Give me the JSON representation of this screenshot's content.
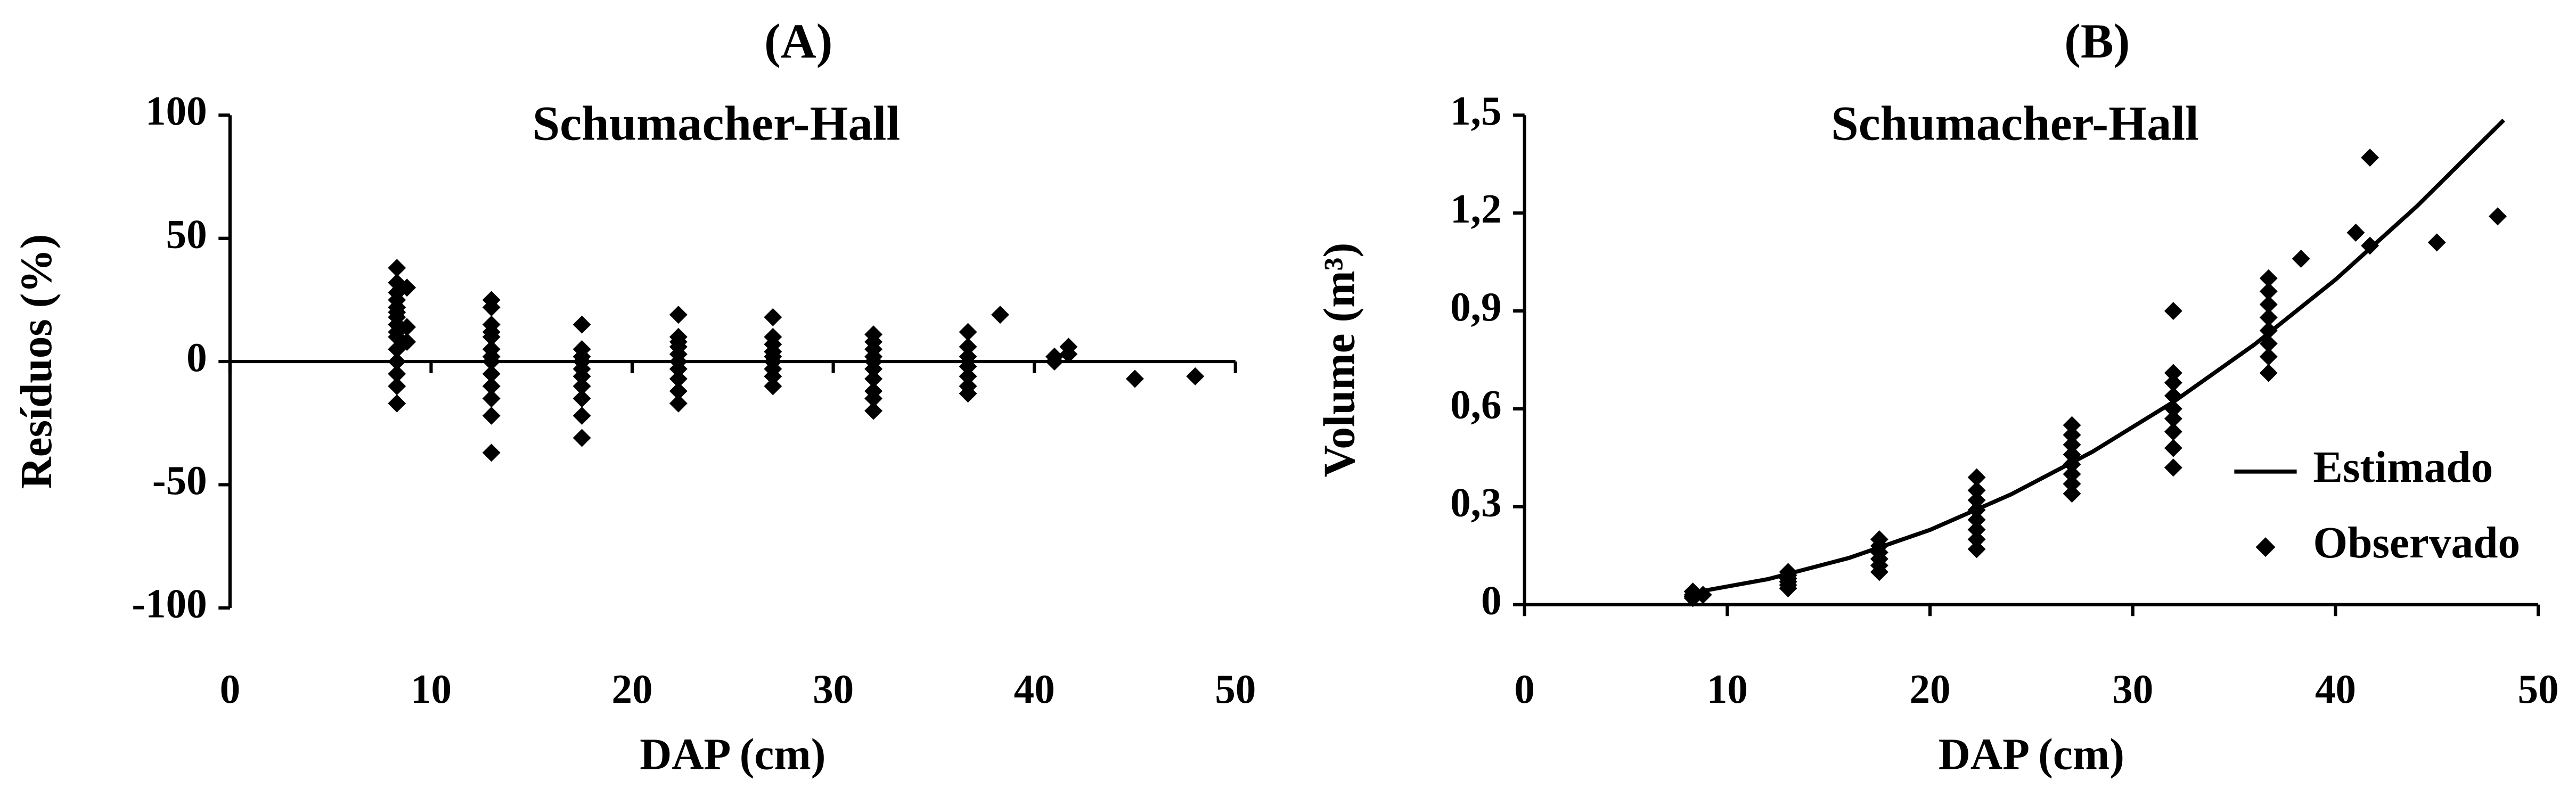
{
  "chart_data": [
    {
      "type": "scatter",
      "title": "(A)",
      "subtitle": "Schumacher-Hall",
      "x_label": "DAP (cm)",
      "y_label": "Resíduos (%)",
      "xlim": [
        0,
        50
      ],
      "xticks": [
        0,
        10,
        20,
        30,
        40,
        50
      ],
      "ylim": [
        -100,
        100
      ],
      "yticks": [
        -100,
        -50,
        0,
        50,
        100
      ],
      "color": "#000000",
      "x": [
        8.3,
        8.3,
        8.3,
        8.3,
        8.3,
        8.3,
        8.3,
        8.3,
        8.3,
        8.3,
        8.3,
        8.3,
        8.3,
        8.3,
        8.3,
        8.8,
        8.8,
        8.8,
        13,
        13,
        13,
        13,
        13,
        13,
        13,
        13,
        13,
        13,
        13,
        13,
        13,
        17.5,
        17.5,
        17.5,
        17.5,
        17.5,
        17.5,
        17.5,
        17.5,
        17.5,
        17.5,
        22.3,
        22.3,
        22.3,
        22.3,
        22.3,
        22.3,
        22.3,
        22.3,
        22.3,
        22.3,
        27,
        27,
        27,
        27,
        27,
        27,
        27,
        27,
        27,
        32,
        32,
        32,
        32,
        32,
        32,
        32,
        32,
        32,
        32,
        36.7,
        36.7,
        36.7,
        36.7,
        36.7,
        36.7,
        36.7,
        38.3,
        41,
        41,
        41.7,
        41.7,
        45,
        48
      ],
      "values": [
        38,
        32,
        25,
        22,
        20,
        15,
        10,
        5,
        0,
        -5,
        -10,
        -17,
        28,
        18,
        12,
        30,
        14,
        8,
        25,
        22,
        15,
        10,
        5,
        2,
        0,
        -5,
        -10,
        -15,
        -22,
        -37,
        12,
        15,
        5,
        2,
        0,
        -3,
        -6,
        -10,
        -15,
        -22,
        -31,
        19,
        10,
        6,
        3,
        0,
        -3,
        -7,
        -12,
        -17,
        8,
        18,
        10,
        7,
        4,
        2,
        0,
        -3,
        -6,
        -10,
        11,
        8,
        5,
        2,
        0,
        -3,
        -7,
        -12,
        -15,
        -20,
        12,
        6,
        2,
        -2,
        -6,
        -10,
        -13,
        19,
        0,
        2,
        6,
        3,
        -7,
        -6
      ]
    },
    {
      "type": "scatter_line",
      "title": "(B)",
      "subtitle": "Schumacher-Hall",
      "x_label": "DAP (cm)",
      "y_label": "Volume (m³)",
      "xlim": [
        0,
        50
      ],
      "xticks": [
        0,
        10,
        20,
        30,
        40,
        50
      ],
      "ylim": [
        0,
        1.5
      ],
      "yticks": [
        0,
        {
          "value": 0.3,
          "label": "0,3"
        },
        {
          "value": 0.6,
          "label": "0,6"
        },
        {
          "value": 0.9,
          "label": "0,9"
        },
        {
          "value": 1.2,
          "label": "1,2"
        },
        {
          "value": 1.5,
          "label": "1,5"
        }
      ],
      "legend": "right",
      "series": [
        {
          "name": "Estimado",
          "color": "#000000",
          "kind": "line",
          "x": [
            8,
            12,
            16,
            20,
            24,
            28,
            32,
            36,
            40,
            44,
            48.3
          ],
          "values": [
            0.033,
            0.078,
            0.143,
            0.229,
            0.338,
            0.468,
            0.621,
            0.797,
            0.996,
            1.22,
            1.485
          ]
        },
        {
          "name": "Observado",
          "color": "#000000",
          "kind": "scatter",
          "x": [
            8.3,
            8.3,
            8.3,
            8.3,
            8.8,
            13,
            13,
            13,
            13,
            13,
            13,
            17.5,
            17.5,
            17.5,
            17.5,
            17.5,
            17.5,
            22.3,
            22.3,
            22.3,
            22.3,
            22.3,
            22.3,
            22.3,
            22.3,
            27,
            27,
            27,
            27,
            27,
            27,
            27,
            27,
            32,
            32,
            32,
            32,
            32,
            32,
            32,
            32,
            32,
            36.7,
            36.7,
            36.7,
            36.7,
            36.7,
            36.7,
            36.7,
            36.7,
            38.3,
            41,
            41.7,
            41.7,
            45,
            48
          ],
          "values": [
            0.02,
            0.03,
            0.04,
            0.025,
            0.03,
            0.05,
            0.06,
            0.07,
            0.08,
            0.09,
            0.1,
            0.1,
            0.12,
            0.14,
            0.16,
            0.18,
            0.2,
            0.17,
            0.2,
            0.23,
            0.26,
            0.29,
            0.32,
            0.35,
            0.39,
            0.34,
            0.37,
            0.4,
            0.43,
            0.46,
            0.49,
            0.52,
            0.55,
            0.42,
            0.48,
            0.53,
            0.57,
            0.6,
            0.64,
            0.68,
            0.71,
            0.9,
            0.71,
            0.76,
            0.8,
            0.84,
            0.88,
            0.92,
            0.96,
            1.0,
            1.06,
            1.14,
            1.37,
            1.1,
            1.11,
            1.19
          ]
        }
      ]
    }
  ]
}
